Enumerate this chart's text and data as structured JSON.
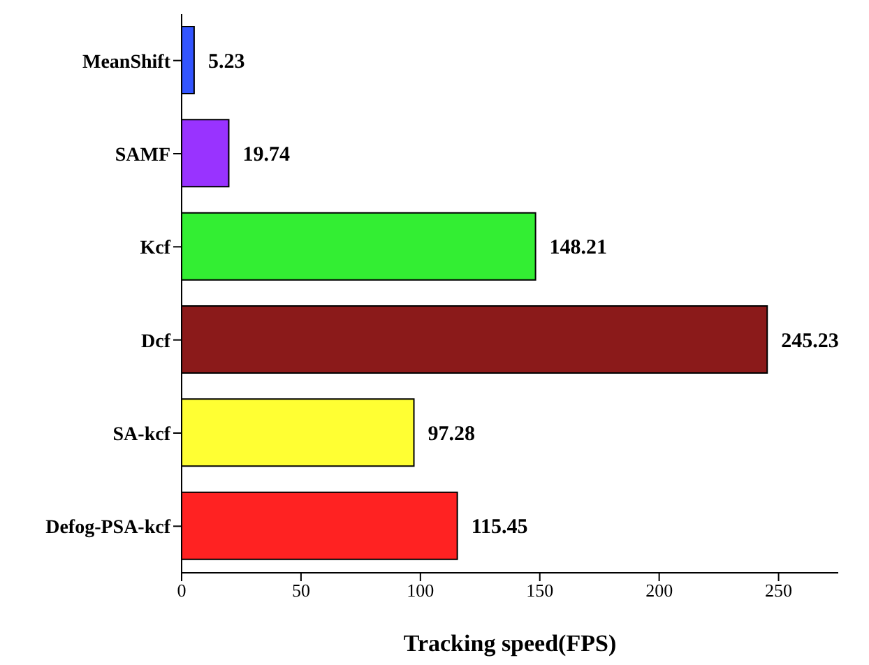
{
  "chart_data": {
    "type": "bar",
    "orientation": "horizontal",
    "xlabel": "Tracking speed(FPS)",
    "categories": [
      "MeanShift",
      "SAMF",
      "Kcf",
      "Dcf",
      "SA-kcf",
      "Defog-PSA-kcf"
    ],
    "values": [
      5.23,
      19.74,
      148.21,
      245.23,
      97.28,
      115.45
    ],
    "colors": [
      "#3355ff",
      "#9933ff",
      "#33ee33",
      "#8b1a1a",
      "#ffff33",
      "#ff2222"
    ],
    "xlim": [
      0,
      275
    ],
    "xticks": [
      0,
      50,
      100,
      150,
      200,
      250
    ],
    "grid": false,
    "data_labels": true
  }
}
